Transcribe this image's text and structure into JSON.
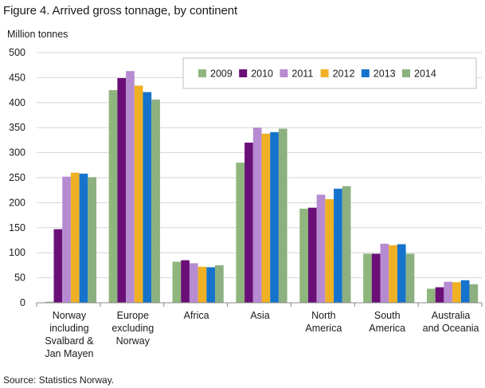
{
  "title": "Figure 4. Arrived gross tonnage, by continent",
  "source": "Source: Statistics Norway.",
  "chart_data": {
    "type": "bar",
    "ylabel": "Million tonnes",
    "ylim": [
      0,
      500
    ],
    "yticks": [
      0,
      50,
      100,
      150,
      200,
      250,
      300,
      350,
      400,
      450,
      500
    ],
    "grid": true,
    "legend_position": "top-right",
    "categories": [
      [
        "Norway",
        "including",
        "Svalbard &",
        "Jan Mayen"
      ],
      [
        "Europe",
        "excluding",
        "Norway"
      ],
      [
        "Africa"
      ],
      [
        "Asia"
      ],
      [
        "North",
        "America"
      ],
      [
        "South",
        "America"
      ],
      [
        "Australia",
        "and Oceania"
      ]
    ],
    "series": [
      {
        "name": "2009",
        "color": "#8fb67c",
        "values": [
          2,
          425,
          82,
          280,
          188,
          98,
          28
        ]
      },
      {
        "name": "2010",
        "color": "#6a0f78",
        "values": [
          147,
          449,
          85,
          320,
          190,
          98,
          31
        ]
      },
      {
        "name": "2011",
        "color": "#b78bd1",
        "values": [
          252,
          463,
          79,
          350,
          216,
          118,
          42
        ]
      },
      {
        "name": "2012",
        "color": "#f0b024",
        "values": [
          260,
          434,
          72,
          338,
          207,
          115,
          41
        ]
      },
      {
        "name": "2013",
        "color": "#1573cc",
        "values": [
          258,
          421,
          71,
          341,
          228,
          117,
          45
        ]
      },
      {
        "name": "2014",
        "color": "#8cb07f",
        "values": [
          251,
          406,
          75,
          348,
          233,
          98,
          37
        ]
      }
    ]
  }
}
